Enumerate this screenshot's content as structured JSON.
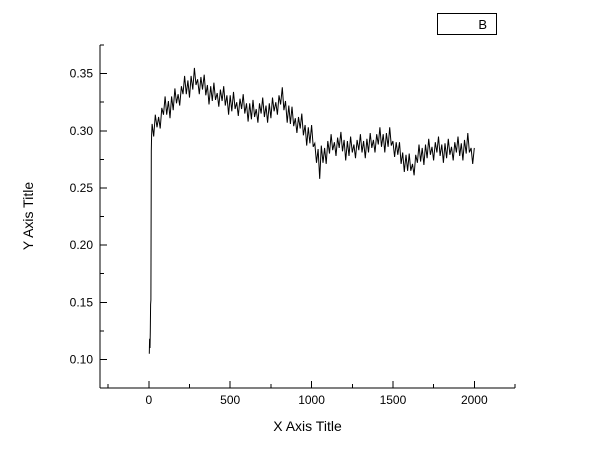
{
  "chart_data": {
    "type": "line",
    "title": "",
    "xlabel": "X Axis Title",
    "ylabel": "Y Axis Title",
    "legend": {
      "label": "B",
      "position": "top-right-outside"
    },
    "line_color": "#000000",
    "grid": false,
    "axes": {
      "x": {
        "lim": [
          -300,
          2250
        ],
        "major_ticks": [
          0,
          500,
          1000,
          1500,
          2000
        ],
        "tick_labels": [
          "0",
          "500",
          "1000",
          "1500",
          "2000"
        ],
        "minor_ticks": [
          -250,
          250,
          750,
          1250,
          1750,
          2250
        ]
      },
      "y": {
        "lim": [
          0.075,
          0.375
        ],
        "major_ticks": [
          0.1,
          0.15,
          0.2,
          0.25,
          0.3,
          0.35
        ],
        "tick_labels": [
          "0.10",
          "0.15",
          "0.20",
          "0.25",
          "0.30",
          "0.35"
        ],
        "minor_ticks": [
          0.075,
          0.125,
          0.175,
          0.225,
          0.275,
          0.325,
          0.375
        ]
      }
    },
    "points": [
      [
        3,
        0.105
      ],
      [
        5,
        0.118
      ],
      [
        7,
        0.11
      ],
      [
        9,
        0.124
      ],
      [
        11,
        0.148
      ],
      [
        13,
        0.152
      ],
      [
        15,
        0.282
      ],
      [
        17,
        0.296
      ],
      [
        20,
        0.306
      ],
      [
        30,
        0.295
      ],
      [
        40,
        0.314
      ],
      [
        50,
        0.303
      ],
      [
        60,
        0.312
      ],
      [
        70,
        0.302
      ],
      [
        80,
        0.32
      ],
      [
        90,
        0.314
      ],
      [
        100,
        0.33
      ],
      [
        110,
        0.314
      ],
      [
        120,
        0.326
      ],
      [
        130,
        0.311
      ],
      [
        140,
        0.33
      ],
      [
        150,
        0.318
      ],
      [
        160,
        0.337
      ],
      [
        170,
        0.324
      ],
      [
        180,
        0.332
      ],
      [
        190,
        0.322
      ],
      [
        200,
        0.339
      ],
      [
        210,
        0.332
      ],
      [
        220,
        0.348
      ],
      [
        230,
        0.332
      ],
      [
        240,
        0.344
      ],
      [
        250,
        0.329
      ],
      [
        260,
        0.348
      ],
      [
        270,
        0.336
      ],
      [
        280,
        0.355
      ],
      [
        290,
        0.34
      ],
      [
        300,
        0.345
      ],
      [
        310,
        0.332
      ],
      [
        320,
        0.347
      ],
      [
        330,
        0.336
      ],
      [
        340,
        0.349
      ],
      [
        350,
        0.331
      ],
      [
        360,
        0.34
      ],
      [
        370,
        0.323
      ],
      [
        380,
        0.339
      ],
      [
        390,
        0.326
      ],
      [
        400,
        0.342
      ],
      [
        410,
        0.327
      ],
      [
        420,
        0.333
      ],
      [
        430,
        0.321
      ],
      [
        440,
        0.336
      ],
      [
        450,
        0.326
      ],
      [
        460,
        0.339
      ],
      [
        470,
        0.322
      ],
      [
        480,
        0.331
      ],
      [
        490,
        0.314
      ],
      [
        500,
        0.331
      ],
      [
        510,
        0.317
      ],
      [
        520,
        0.334
      ],
      [
        530,
        0.319
      ],
      [
        540,
        0.325
      ],
      [
        550,
        0.313
      ],
      [
        560,
        0.328
      ],
      [
        570,
        0.319
      ],
      [
        580,
        0.332
      ],
      [
        590,
        0.315
      ],
      [
        600,
        0.324
      ],
      [
        610,
        0.308
      ],
      [
        620,
        0.324
      ],
      [
        630,
        0.31
      ],
      [
        640,
        0.327
      ],
      [
        650,
        0.312
      ],
      [
        660,
        0.319
      ],
      [
        670,
        0.307
      ],
      [
        680,
        0.324
      ],
      [
        690,
        0.315
      ],
      [
        700,
        0.329
      ],
      [
        710,
        0.312
      ],
      [
        720,
        0.322
      ],
      [
        730,
        0.307
      ],
      [
        740,
        0.324
      ],
      [
        750,
        0.311
      ],
      [
        760,
        0.329
      ],
      [
        770,
        0.317
      ],
      [
        780,
        0.325
      ],
      [
        790,
        0.314
      ],
      [
        800,
        0.331
      ],
      [
        810,
        0.323
      ],
      [
        820,
        0.338
      ],
      [
        830,
        0.318
      ],
      [
        840,
        0.326
      ],
      [
        850,
        0.307
      ],
      [
        860,
        0.322
      ],
      [
        870,
        0.306
      ],
      [
        880,
        0.321
      ],
      [
        890,
        0.304
      ],
      [
        900,
        0.311
      ],
      [
        910,
        0.298
      ],
      [
        920,
        0.312
      ],
      [
        930,
        0.302
      ],
      [
        940,
        0.315
      ],
      [
        950,
        0.296
      ],
      [
        960,
        0.305
      ],
      [
        970,
        0.287
      ],
      [
        980,
        0.303
      ],
      [
        990,
        0.289
      ],
      [
        1000,
        0.305
      ],
      [
        1010,
        0.286
      ],
      [
        1020,
        0.289
      ],
      [
        1030,
        0.272
      ],
      [
        1040,
        0.284
      ],
      [
        1050,
        0.258
      ],
      [
        1060,
        0.287
      ],
      [
        1070,
        0.272
      ],
      [
        1080,
        0.285
      ],
      [
        1090,
        0.271
      ],
      [
        1100,
        0.291
      ],
      [
        1110,
        0.28
      ],
      [
        1120,
        0.297
      ],
      [
        1130,
        0.283
      ],
      [
        1140,
        0.29
      ],
      [
        1150,
        0.278
      ],
      [
        1160,
        0.294
      ],
      [
        1170,
        0.285
      ],
      [
        1180,
        0.299
      ],
      [
        1190,
        0.282
      ],
      [
        1200,
        0.292
      ],
      [
        1210,
        0.274
      ],
      [
        1220,
        0.291
      ],
      [
        1230,
        0.278
      ],
      [
        1240,
        0.295
      ],
      [
        1250,
        0.281
      ],
      [
        1260,
        0.288
      ],
      [
        1270,
        0.276
      ],
      [
        1280,
        0.292
      ],
      [
        1290,
        0.283
      ],
      [
        1300,
        0.297
      ],
      [
        1310,
        0.281
      ],
      [
        1320,
        0.291
      ],
      [
        1330,
        0.276
      ],
      [
        1340,
        0.293
      ],
      [
        1350,
        0.281
      ],
      [
        1360,
        0.298
      ],
      [
        1370,
        0.285
      ],
      [
        1380,
        0.292
      ],
      [
        1390,
        0.281
      ],
      [
        1400,
        0.297
      ],
      [
        1410,
        0.288
      ],
      [
        1420,
        0.303
      ],
      [
        1430,
        0.286
      ],
      [
        1440,
        0.297
      ],
      [
        1450,
        0.281
      ],
      [
        1460,
        0.298
      ],
      [
        1470,
        0.286
      ],
      [
        1480,
        0.303
      ],
      [
        1490,
        0.287
      ],
      [
        1500,
        0.291
      ],
      [
        1510,
        0.277
      ],
      [
        1520,
        0.29
      ],
      [
        1530,
        0.279
      ],
      [
        1540,
        0.29
      ],
      [
        1550,
        0.271
      ],
      [
        1560,
        0.281
      ],
      [
        1570,
        0.264
      ],
      [
        1580,
        0.279
      ],
      [
        1590,
        0.265
      ],
      [
        1600,
        0.28
      ],
      [
        1610,
        0.265
      ],
      [
        1620,
        0.271
      ],
      [
        1630,
        0.261
      ],
      [
        1640,
        0.279
      ],
      [
        1650,
        0.272
      ],
      [
        1660,
        0.288
      ],
      [
        1670,
        0.273
      ],
      [
        1680,
        0.285
      ],
      [
        1690,
        0.27
      ],
      [
        1700,
        0.288
      ],
      [
        1710,
        0.276
      ],
      [
        1720,
        0.293
      ],
      [
        1730,
        0.279
      ],
      [
        1740,
        0.286
      ],
      [
        1750,
        0.274
      ],
      [
        1760,
        0.29
      ],
      [
        1770,
        0.281
      ],
      [
        1780,
        0.295
      ],
      [
        1790,
        0.278
      ],
      [
        1800,
        0.288
      ],
      [
        1810,
        0.272
      ],
      [
        1820,
        0.289
      ],
      [
        1830,
        0.276
      ],
      [
        1840,
        0.293
      ],
      [
        1850,
        0.279
      ],
      [
        1860,
        0.286
      ],
      [
        1870,
        0.274
      ],
      [
        1880,
        0.29
      ],
      [
        1890,
        0.281
      ],
      [
        1900,
        0.295
      ],
      [
        1910,
        0.278
      ],
      [
        1920,
        0.289
      ],
      [
        1930,
        0.274
      ],
      [
        1940,
        0.292
      ],
      [
        1950,
        0.28
      ],
      [
        1960,
        0.298
      ],
      [
        1970,
        0.281
      ],
      [
        1980,
        0.285
      ],
      [
        1990,
        0.271
      ],
      [
        2000,
        0.285
      ]
    ]
  }
}
